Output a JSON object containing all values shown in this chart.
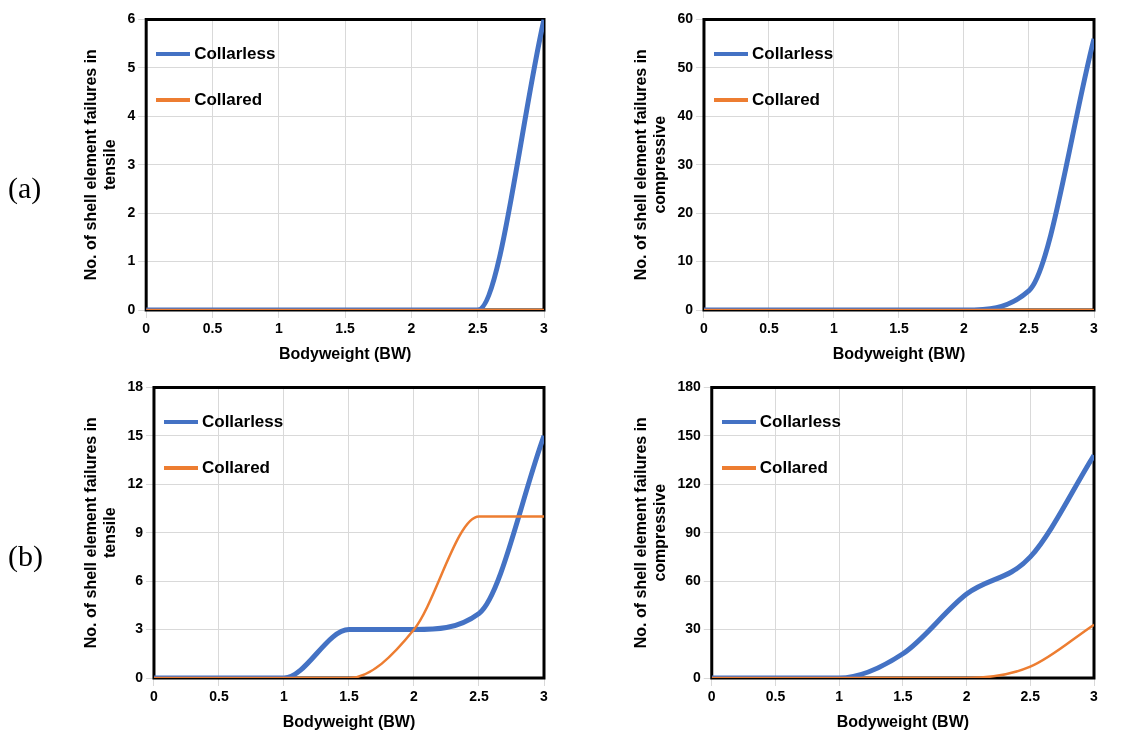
{
  "chart_data": [
    {
      "type": "line",
      "annotations": [
        "(a)"
      ],
      "xlabel": "Bodyweight (BW)",
      "ylabel": "No. of shell element failures in tensile",
      "x": [
        0,
        0.5,
        1,
        1.5,
        2,
        2.5,
        3
      ],
      "xlim": [
        0,
        3
      ],
      "xticks": [
        0,
        0.5,
        1,
        1.5,
        2,
        2.5,
        3
      ],
      "ylim": [
        0,
        6
      ],
      "yticks": [
        0,
        1,
        2,
        3,
        4,
        5,
        6
      ],
      "grid": true,
      "legend": "top left",
      "series": [
        {
          "name": "Collarless",
          "color": "#4472c4",
          "values": [
            0,
            0,
            0,
            0,
            0,
            0,
            6
          ]
        },
        {
          "name": "Collared",
          "color": "#ed7d31",
          "values": [
            0,
            0,
            0,
            0,
            0,
            0,
            0
          ]
        }
      ]
    },
    {
      "type": "line",
      "xlabel": "Bodyweight (BW)",
      "ylabel": "No. of shell element failures in compressive",
      "x": [
        0,
        0.5,
        1,
        1.5,
        2,
        2.5,
        3
      ],
      "xlim": [
        0,
        3
      ],
      "xticks": [
        0,
        0.5,
        1,
        1.5,
        2,
        2.5,
        3
      ],
      "ylim": [
        0,
        60
      ],
      "yticks": [
        0,
        10,
        20,
        30,
        40,
        50,
        60
      ],
      "grid": true,
      "legend": "top left",
      "series": [
        {
          "name": "Collarless",
          "color": "#4472c4",
          "values": [
            0,
            0,
            0,
            0,
            0,
            4,
            56
          ]
        },
        {
          "name": "Collared",
          "color": "#ed7d31",
          "values": [
            0,
            0,
            0,
            0,
            0,
            0,
            0
          ]
        }
      ]
    },
    {
      "type": "line",
      "annotations": [
        "(b)"
      ],
      "xlabel": "Bodyweight (BW)",
      "ylabel": "No. of shell element failures in tensile",
      "x": [
        0,
        0.5,
        1,
        1.5,
        2,
        2.5,
        3
      ],
      "xlim": [
        0,
        3
      ],
      "xticks": [
        0,
        0.5,
        1,
        1.5,
        2,
        2.5,
        3
      ],
      "ylim": [
        0,
        18
      ],
      "yticks": [
        0,
        3,
        6,
        9,
        12,
        15,
        18
      ],
      "grid": true,
      "legend": "top left",
      "series": [
        {
          "name": "Collarless",
          "color": "#4472c4",
          "values": [
            0,
            0,
            0,
            3,
            3,
            4,
            15
          ]
        },
        {
          "name": "Collared",
          "color": "#ed7d31",
          "values": [
            0,
            0,
            0,
            0,
            3,
            10,
            10
          ]
        }
      ]
    },
    {
      "type": "line",
      "xlabel": "Bodyweight (BW)",
      "ylabel": "No. of shell element failures in compressive",
      "x": [
        0,
        0.5,
        1,
        1.5,
        2,
        2.5,
        3
      ],
      "xlim": [
        0,
        3
      ],
      "xticks": [
        0,
        0.5,
        1,
        1.5,
        2,
        2.5,
        3
      ],
      "ylim": [
        0,
        180
      ],
      "yticks": [
        0,
        30,
        60,
        90,
        120,
        150,
        180
      ],
      "grid": true,
      "legend": "top left",
      "series": [
        {
          "name": "Collarless",
          "color": "#4472c4",
          "values": [
            0,
            0,
            0,
            15,
            52,
            75,
            138
          ]
        },
        {
          "name": "Collared",
          "color": "#ed7d31",
          "values": [
            0,
            0,
            0,
            0,
            0,
            7,
            33
          ]
        }
      ]
    }
  ]
}
